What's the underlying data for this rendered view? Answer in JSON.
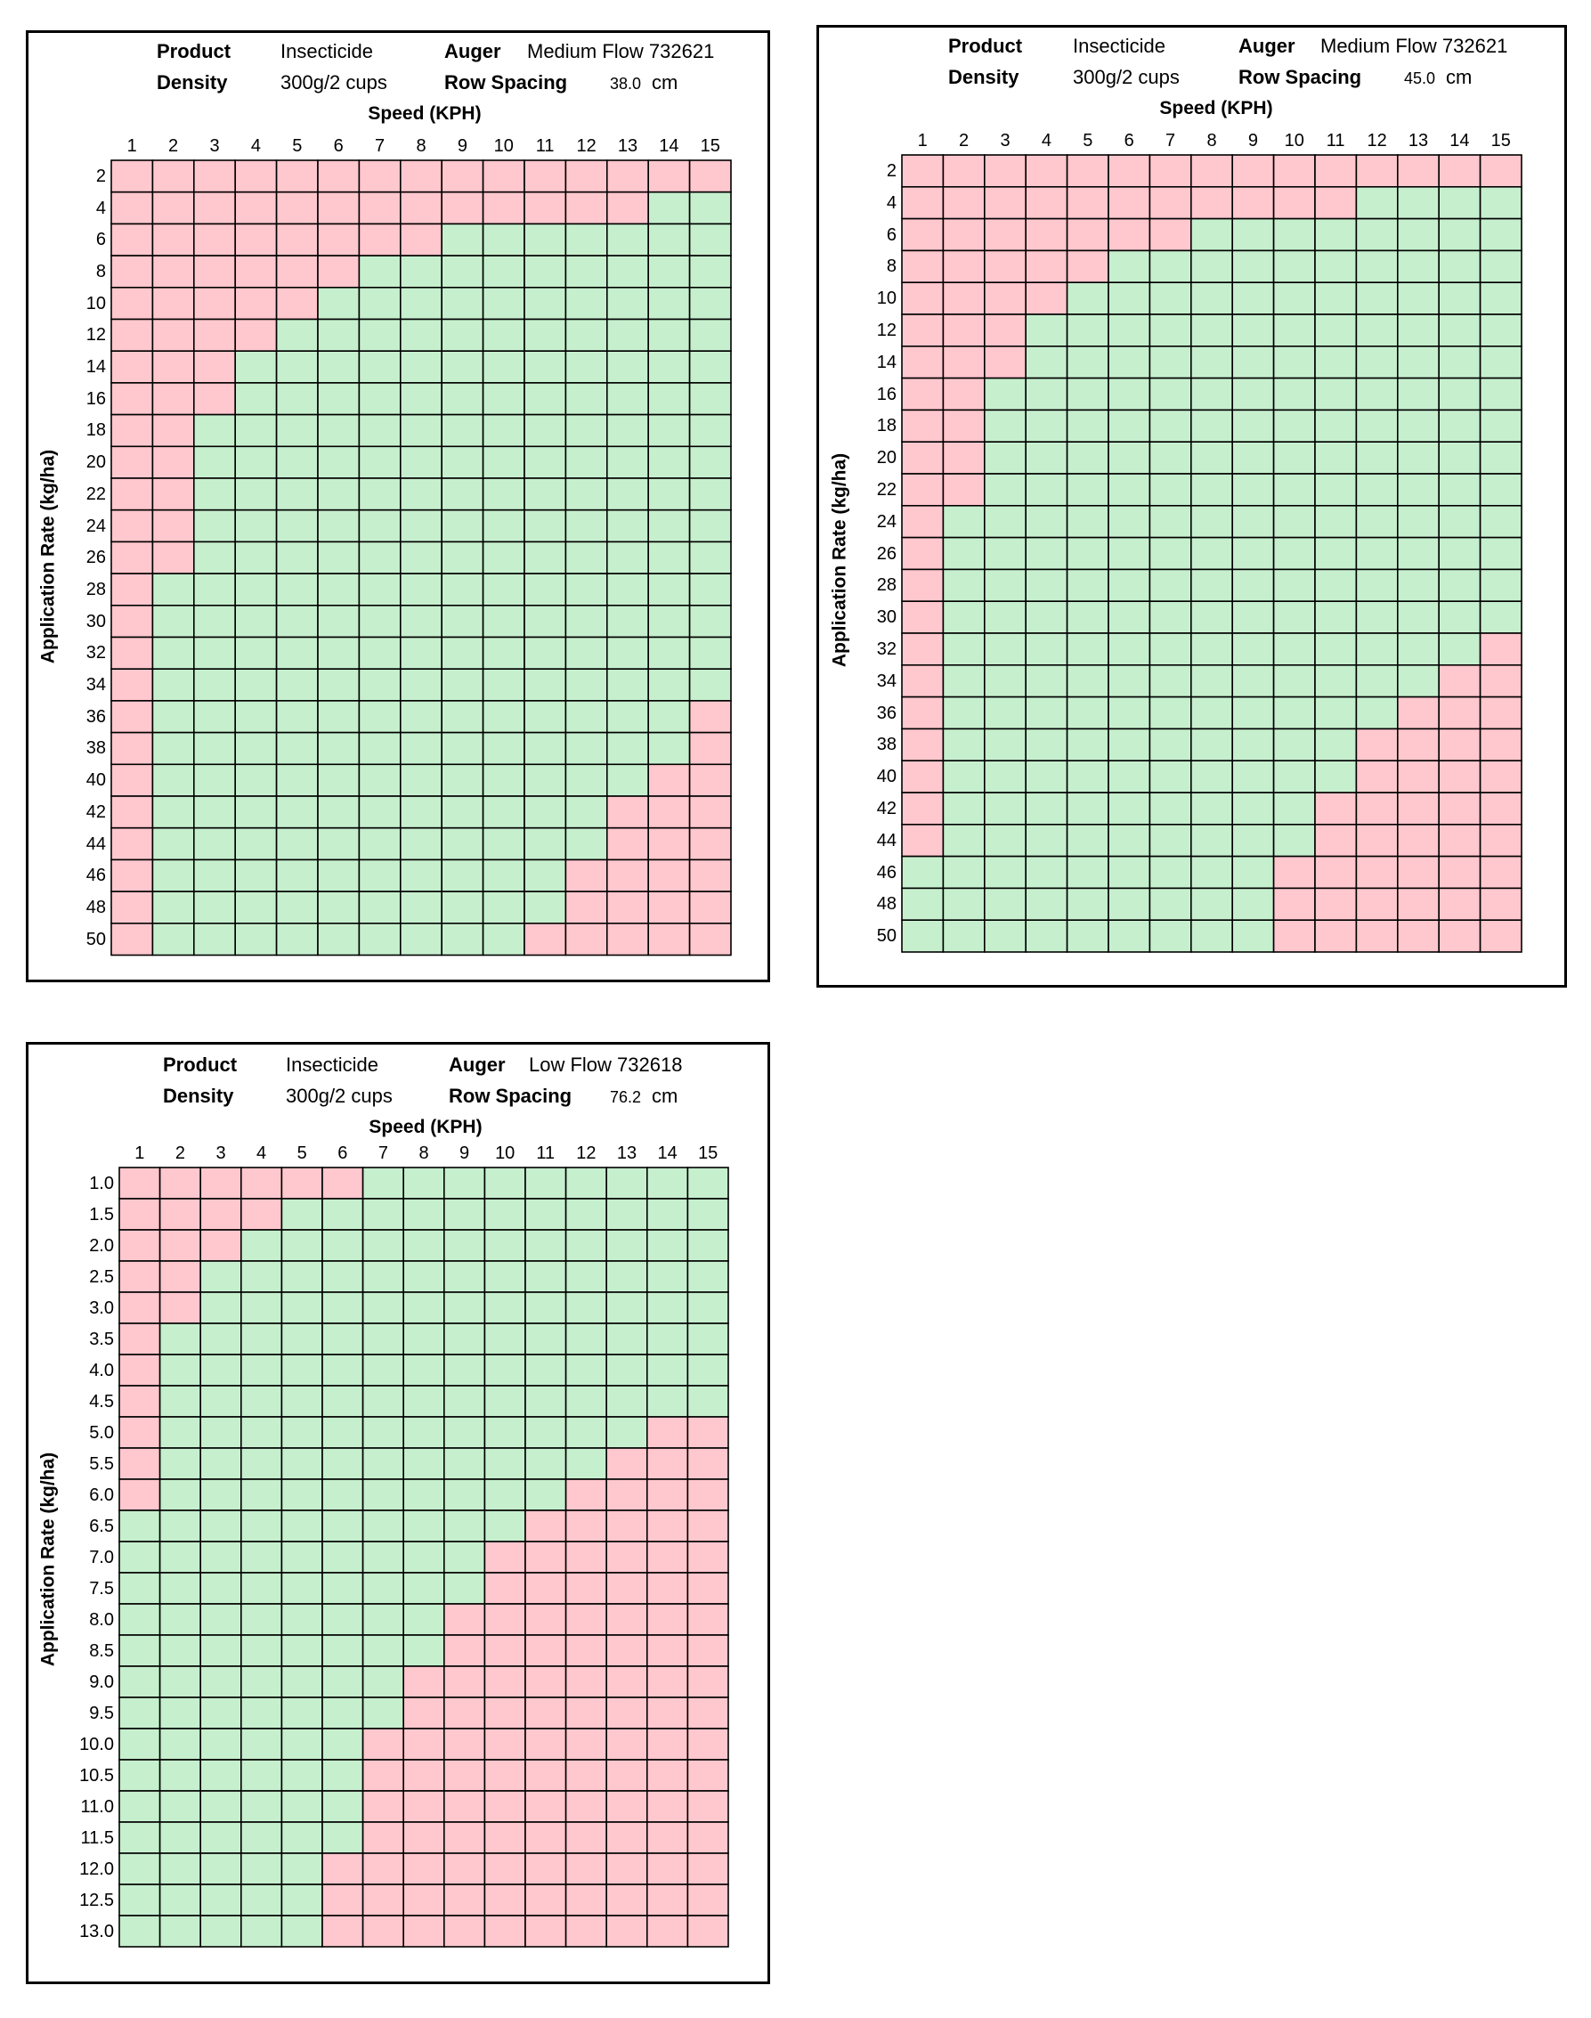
{
  "chart_data": [
    {
      "type": "heatmap",
      "header": {
        "product_label": "Product",
        "product_value": "Insecticide",
        "auger_label": "Auger",
        "auger_value": "Medium Flow 732621",
        "density_label": "Density",
        "density_value": "300g/2 cups",
        "row_spacing_label": "Row Spacing",
        "row_spacing_value": "38.0",
        "row_spacing_unit": "cm"
      },
      "xlabel": "Speed (KPH)",
      "ylabel": "Application Rate (kg/ha)",
      "x": [
        "1",
        "2",
        "3",
        "4",
        "5",
        "6",
        "7",
        "8",
        "9",
        "10",
        "11",
        "12",
        "13",
        "14",
        "15"
      ],
      "y": [
        "2",
        "4",
        "6",
        "8",
        "10",
        "12",
        "14",
        "16",
        "18",
        "20",
        "22",
        "24",
        "26",
        "28",
        "30",
        "32",
        "34",
        "36",
        "38",
        "40",
        "42",
        "44",
        "46",
        "48",
        "50"
      ],
      "valid_speed_range": [
        [
          0,
          0
        ],
        [
          14,
          15
        ],
        [
          9,
          15
        ],
        [
          7,
          15
        ],
        [
          6,
          15
        ],
        [
          5,
          15
        ],
        [
          4,
          15
        ],
        [
          4,
          15
        ],
        [
          3,
          15
        ],
        [
          3,
          15
        ],
        [
          3,
          15
        ],
        [
          3,
          15
        ],
        [
          3,
          15
        ],
        [
          2,
          15
        ],
        [
          2,
          15
        ],
        [
          2,
          15
        ],
        [
          2,
          15
        ],
        [
          2,
          14
        ],
        [
          2,
          14
        ],
        [
          2,
          13
        ],
        [
          2,
          12
        ],
        [
          2,
          12
        ],
        [
          2,
          11
        ],
        [
          2,
          11
        ],
        [
          2,
          10
        ]
      ],
      "colors": {
        "in_range": "#c6efce",
        "out_of_range": "#ffc7ce"
      }
    },
    {
      "type": "heatmap",
      "header": {
        "product_label": "Product",
        "product_value": "Insecticide",
        "auger_label": "Auger",
        "auger_value": "Medium Flow 732621",
        "density_label": "Density",
        "density_value": "300g/2 cups",
        "row_spacing_label": "Row Spacing",
        "row_spacing_value": "45.0",
        "row_spacing_unit": "cm"
      },
      "xlabel": "Speed (KPH)",
      "ylabel": "Application Rate (kg/ha)",
      "x": [
        "1",
        "2",
        "3",
        "4",
        "5",
        "6",
        "7",
        "8",
        "9",
        "10",
        "11",
        "12",
        "13",
        "14",
        "15"
      ],
      "y": [
        "2",
        "4",
        "6",
        "8",
        "10",
        "12",
        "14",
        "16",
        "18",
        "20",
        "22",
        "24",
        "26",
        "28",
        "30",
        "32",
        "34",
        "36",
        "38",
        "40",
        "42",
        "44",
        "46",
        "48",
        "50"
      ],
      "valid_speed_range": [
        [
          0,
          0
        ],
        [
          12,
          15
        ],
        [
          8,
          15
        ],
        [
          6,
          15
        ],
        [
          5,
          15
        ],
        [
          4,
          15
        ],
        [
          4,
          15
        ],
        [
          3,
          15
        ],
        [
          3,
          15
        ],
        [
          3,
          15
        ],
        [
          3,
          15
        ],
        [
          2,
          15
        ],
        [
          2,
          15
        ],
        [
          2,
          15
        ],
        [
          2,
          15
        ],
        [
          2,
          14
        ],
        [
          2,
          13
        ],
        [
          2,
          12
        ],
        [
          2,
          11
        ],
        [
          2,
          11
        ],
        [
          2,
          10
        ],
        [
          2,
          10
        ],
        [
          1,
          9
        ],
        [
          1,
          9
        ],
        [
          1,
          9
        ]
      ],
      "colors": {
        "in_range": "#c6efce",
        "out_of_range": "#ffc7ce"
      }
    },
    {
      "type": "heatmap",
      "header": {
        "product_label": "Product",
        "product_value": "Insecticide",
        "auger_label": "Auger",
        "auger_value": "Low Flow 732618",
        "density_label": "Density",
        "density_value": "300g/2 cups",
        "row_spacing_label": "Row Spacing",
        "row_spacing_value": "76.2",
        "row_spacing_unit": "cm"
      },
      "xlabel": "Speed (KPH)",
      "ylabel": "Application Rate (kg/ha)",
      "x": [
        "1",
        "2",
        "3",
        "4",
        "5",
        "6",
        "7",
        "8",
        "9",
        "10",
        "11",
        "12",
        "13",
        "14",
        "15"
      ],
      "y": [
        "1.0",
        "1.5",
        "2.0",
        "2.5",
        "3.0",
        "3.5",
        "4.0",
        "4.5",
        "5.0",
        "5.5",
        "6.0",
        "6.5",
        "7.0",
        "7.5",
        "8.0",
        "8.5",
        "9.0",
        "9.5",
        "10.0",
        "10.5",
        "11.0",
        "11.5",
        "12.0",
        "12.5",
        "13.0"
      ],
      "valid_speed_range": [
        [
          7,
          15
        ],
        [
          5,
          15
        ],
        [
          4,
          15
        ],
        [
          3,
          15
        ],
        [
          3,
          15
        ],
        [
          2,
          15
        ],
        [
          2,
          15
        ],
        [
          2,
          15
        ],
        [
          2,
          13
        ],
        [
          2,
          12
        ],
        [
          2,
          11
        ],
        [
          1,
          10
        ],
        [
          1,
          9
        ],
        [
          1,
          9
        ],
        [
          1,
          8
        ],
        [
          1,
          8
        ],
        [
          1,
          7
        ],
        [
          1,
          7
        ],
        [
          1,
          6
        ],
        [
          1,
          6
        ],
        [
          1,
          6
        ],
        [
          1,
          6
        ],
        [
          1,
          5
        ],
        [
          1,
          5
        ],
        [
          1,
          5
        ]
      ],
      "colors": {
        "in_range": "#c6efce",
        "out_of_range": "#ffc7ce"
      }
    }
  ]
}
